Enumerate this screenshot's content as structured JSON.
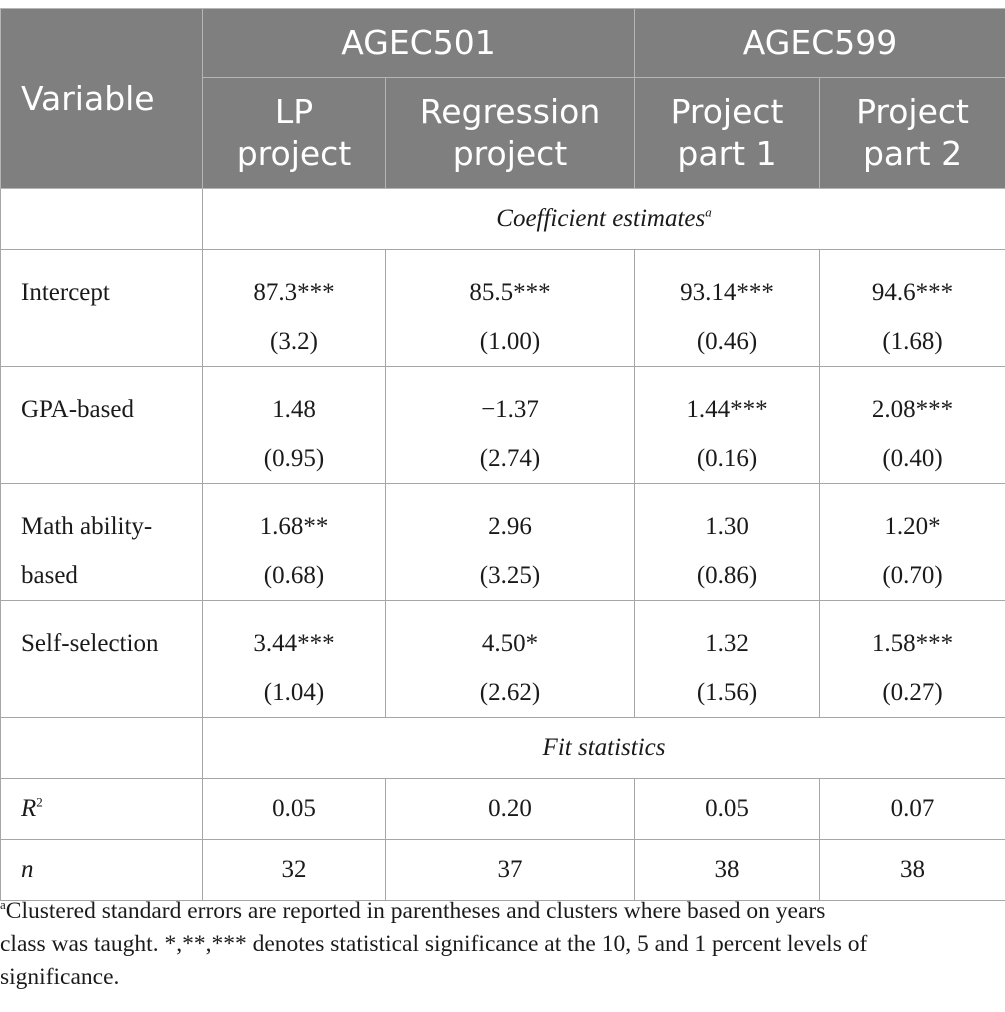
{
  "header": {
    "variable": "Variable",
    "groups": [
      "AGEC501",
      "AGEC599"
    ],
    "columns": [
      [
        "LP",
        "project"
      ],
      [
        "Regression",
        "project"
      ],
      [
        "Project",
        "part 1"
      ],
      [
        "Project",
        "part 2"
      ]
    ]
  },
  "sections": {
    "coef": "Coefficient estimates",
    "coef_sup": "a",
    "fit": "Fit statistics"
  },
  "rows": [
    {
      "label": [
        "Intercept",
        ""
      ],
      "est": [
        "87.3***",
        "85.5***",
        "93.14***",
        "94.6***"
      ],
      "se": [
        "(3.2)",
        "(1.00)",
        "(0.46)",
        "(1.68)"
      ]
    },
    {
      "label": [
        "GPA-based",
        ""
      ],
      "est": [
        "1.48",
        "−1.37",
        "1.44***",
        "2.08***"
      ],
      "se": [
        "(0.95)",
        "(2.74)",
        "(0.16)",
        "(0.40)"
      ]
    },
    {
      "label": [
        "Math ability-",
        "based"
      ],
      "est": [
        "1.68**",
        "2.96",
        "1.30",
        "1.20*"
      ],
      "se": [
        "(0.68)",
        "(3.25)",
        "(0.86)",
        "(0.70)"
      ]
    },
    {
      "label": [
        "Self-selection",
        ""
      ],
      "est": [
        "3.44***",
        "4.50*",
        "1.32",
        "1.58***"
      ],
      "se": [
        "(1.04)",
        "(2.62)",
        "(1.56)",
        "(0.27)"
      ]
    }
  ],
  "stats": [
    {
      "label": "R",
      "label_sup": "2",
      "values": [
        "0.05",
        "0.20",
        "0.05",
        "0.07"
      ]
    },
    {
      "label": "n",
      "values": [
        "32",
        "37",
        "38",
        "38"
      ]
    }
  ],
  "footnote": {
    "marker": "a",
    "line1": "Clustered standard errors are reported in parentheses and clusters where based on years",
    "line2": "class was taught. *,**,*** denotes statistical significance at the 10, 5 and 1 percent levels of",
    "line3": "significance."
  }
}
